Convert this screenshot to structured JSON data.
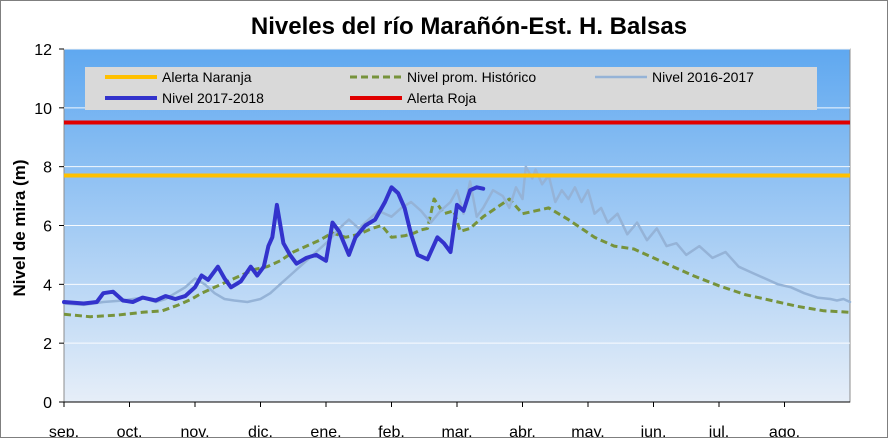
{
  "chart_data": {
    "type": "line",
    "title": "Niveles del río Marañón-Est. H. Balsas",
    "xlabel": "",
    "ylabel": "Nivel  de mira (m)",
    "ylim": [
      0,
      12
    ],
    "yticks": [
      0,
      2,
      4,
      6,
      8,
      10,
      12
    ],
    "xlim": [
      0,
      12
    ],
    "month_labels": [
      "sep.",
      "oct.",
      "nov.",
      "dic.",
      "ene.",
      "feb.",
      "mar.",
      "abr.",
      "may.",
      "jun.",
      "jul.",
      "ago."
    ],
    "grid": true,
    "legend": {
      "position": "top",
      "entries": [
        "Alerta Naranja",
        "Nivel prom. Histórico",
        "Nivel 2016-2017",
        "Nivel 2017-2018",
        "Alerta Roja"
      ]
    },
    "colors": {
      "naranja": "#FFC000",
      "roja": "#E00000",
      "promedio": "#77933C",
      "n2016": "#95B3D7",
      "n2017": "#3333CC",
      "plot_top": "#5FA8F0",
      "plot_bottom": "#E6EEF8"
    },
    "series": [
      {
        "name": "Alerta Naranja",
        "key": "naranja",
        "style": "hline",
        "y": 7.7
      },
      {
        "name": "Alerta Roja",
        "key": "roja",
        "style": "hline",
        "y": 9.5
      },
      {
        "name": "Nivel prom. Histórico",
        "key": "promedio",
        "style": "dashed",
        "x": [
          0,
          0.4,
          0.8,
          1.2,
          1.5,
          1.75,
          1.95,
          2.1,
          2.3,
          2.5,
          2.7,
          2.9,
          3.1,
          3.3,
          3.5,
          3.7,
          3.9,
          4.1,
          4.3,
          4.5,
          4.7,
          4.85,
          5.0,
          5.2,
          5.35,
          5.45,
          5.55,
          5.65,
          5.8,
          5.95,
          6.05,
          6.2,
          6.4,
          6.6,
          6.8,
          7.0,
          7.2,
          7.4,
          7.55,
          7.7,
          7.9,
          8.1,
          8.4,
          8.7,
          9.0,
          9.3,
          9.6,
          10.0,
          10.4,
          10.8,
          11.2,
          11.6,
          12.0
        ],
        "y": [
          2.98,
          2.9,
          2.95,
          3.05,
          3.1,
          3.3,
          3.5,
          3.7,
          3.9,
          4.1,
          4.3,
          4.5,
          4.6,
          4.8,
          5.1,
          5.3,
          5.5,
          5.75,
          5.6,
          5.7,
          5.9,
          6.0,
          5.6,
          5.65,
          5.75,
          5.85,
          5.9,
          6.9,
          6.4,
          6.5,
          5.8,
          5.9,
          6.3,
          6.6,
          6.9,
          6.4,
          6.5,
          6.6,
          6.4,
          6.2,
          5.9,
          5.6,
          5.3,
          5.2,
          4.9,
          4.6,
          4.3,
          3.95,
          3.65,
          3.45,
          3.25,
          3.1,
          3.05
        ]
      },
      {
        "name": "Nivel 2016-2017",
        "key": "n2016",
        "style": "line",
        "x": [
          0,
          0.3,
          0.6,
          0.9,
          1.2,
          1.4,
          1.55,
          1.7,
          1.85,
          2.0,
          2.15,
          2.3,
          2.45,
          2.6,
          2.8,
          3.0,
          3.15,
          3.3,
          3.45,
          3.6,
          3.75,
          3.9,
          4.05,
          4.2,
          4.35,
          4.5,
          4.65,
          4.8,
          5.0,
          5.15,
          5.3,
          5.45,
          5.6,
          5.75,
          5.9,
          6.0,
          6.1,
          6.2,
          6.3,
          6.4,
          6.55,
          6.7,
          6.8,
          6.9,
          7.0,
          7.05,
          7.15,
          7.2,
          7.3,
          7.4,
          7.5,
          7.6,
          7.7,
          7.8,
          7.9,
          8.0,
          8.1,
          8.2,
          8.3,
          8.45,
          8.6,
          8.75,
          8.9,
          9.05,
          9.2,
          9.35,
          9.5,
          9.7,
          9.9,
          10.1,
          10.3,
          10.5,
          10.7,
          10.9,
          11.1,
          11.3,
          11.5,
          11.7,
          11.8,
          11.9,
          12.0
        ],
        "y": [
          3.35,
          3.3,
          3.4,
          3.45,
          3.55,
          3.4,
          3.5,
          3.7,
          3.9,
          4.2,
          4.0,
          3.7,
          3.5,
          3.45,
          3.4,
          3.5,
          3.7,
          4.0,
          4.3,
          4.6,
          4.9,
          5.2,
          5.5,
          5.9,
          6.2,
          5.9,
          6.2,
          6.5,
          6.3,
          6.6,
          6.8,
          6.5,
          6.1,
          6.5,
          6.8,
          7.2,
          6.4,
          7.5,
          6.3,
          6.6,
          7.2,
          7.0,
          6.6,
          7.3,
          6.9,
          8.0,
          7.6,
          7.9,
          7.4,
          7.7,
          6.8,
          7.2,
          6.9,
          7.3,
          6.8,
          7.2,
          6.4,
          6.6,
          6.1,
          6.4,
          5.7,
          6.1,
          5.5,
          5.9,
          5.3,
          5.4,
          5.0,
          5.3,
          4.9,
          5.1,
          4.6,
          4.4,
          4.2,
          4.0,
          3.9,
          3.7,
          3.55,
          3.5,
          3.45,
          3.5,
          3.4
        ]
      },
      {
        "name": "Nivel 2017-2018",
        "key": "n2017",
        "style": "bold",
        "x": [
          0,
          0.3,
          0.5,
          0.6,
          0.75,
          0.9,
          1.05,
          1.2,
          1.4,
          1.55,
          1.7,
          1.85,
          2.0,
          2.1,
          2.2,
          2.35,
          2.45,
          2.55,
          2.7,
          2.85,
          2.95,
          3.05,
          3.12,
          3.18,
          3.25,
          3.35,
          3.45,
          3.55,
          3.7,
          3.85,
          4.0,
          4.1,
          4.2,
          4.35,
          4.45,
          4.6,
          4.75,
          4.9,
          5.0,
          5.1,
          5.2,
          5.3,
          5.4,
          5.55,
          5.7,
          5.8,
          5.9,
          6.0,
          6.1,
          6.2,
          6.3,
          6.4
        ],
        "y": [
          3.4,
          3.35,
          3.4,
          3.7,
          3.75,
          3.45,
          3.4,
          3.55,
          3.45,
          3.6,
          3.5,
          3.6,
          3.9,
          4.3,
          4.15,
          4.6,
          4.2,
          3.9,
          4.1,
          4.6,
          4.3,
          4.6,
          5.3,
          5.6,
          6.7,
          5.4,
          5.0,
          4.7,
          4.9,
          5.0,
          4.8,
          6.1,
          5.8,
          5.0,
          5.6,
          6.0,
          6.2,
          6.8,
          7.3,
          7.1,
          6.6,
          5.7,
          5.0,
          4.85,
          5.6,
          5.4,
          5.1,
          6.7,
          6.5,
          7.2,
          7.3,
          7.25
        ]
      }
    ]
  }
}
